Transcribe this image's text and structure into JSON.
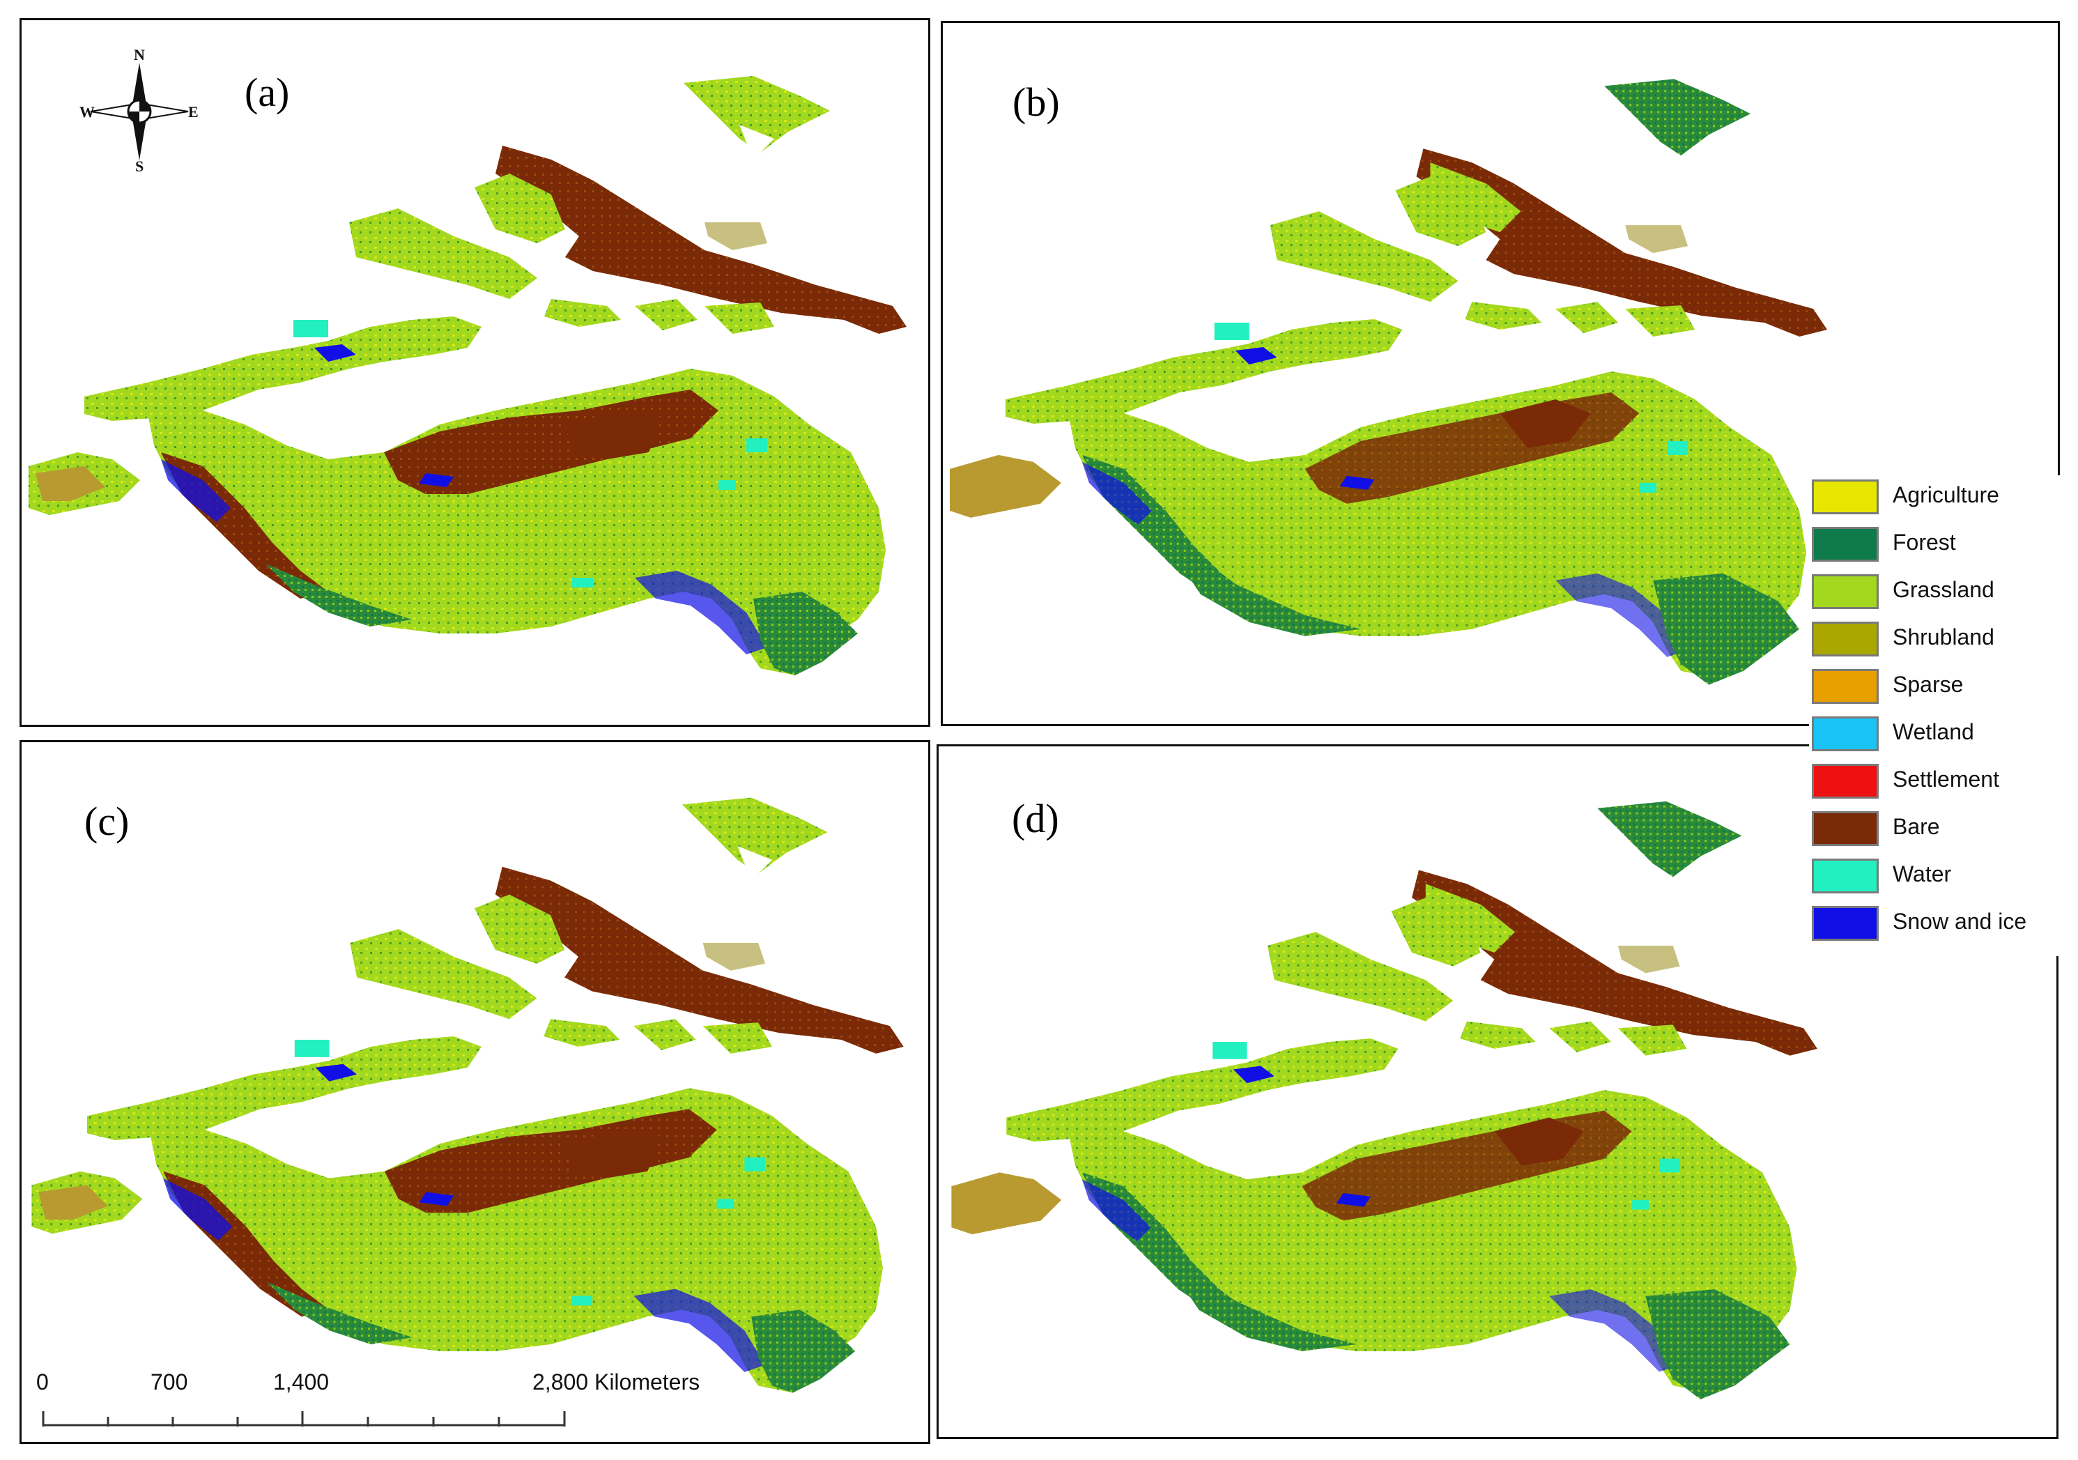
{
  "panels": [
    {
      "id": "a",
      "label": "(a)"
    },
    {
      "id": "b",
      "label": "(b)"
    },
    {
      "id": "c",
      "label": "(c)"
    },
    {
      "id": "d",
      "label": "(d)"
    }
  ],
  "legend": {
    "items": [
      {
        "label": "Agriculture",
        "color": "#e6e600"
      },
      {
        "label": "Forest",
        "color": "#0f7a4a"
      },
      {
        "label": "Grassland",
        "color": "#a2d81e"
      },
      {
        "label": "Shrubland",
        "color": "#aaa800"
      },
      {
        "label": "Sparse",
        "color": "#e8a000"
      },
      {
        "label": "Wetland",
        "color": "#19c3f5"
      },
      {
        "label": "Settlement",
        "color": "#ee1111"
      },
      {
        "label": "Bare",
        "color": "#7a2a06"
      },
      {
        "label": "Water",
        "color": "#22f0c0"
      },
      {
        "label": "Snow and ice",
        "color": "#1010e6"
      }
    ]
  },
  "compass": {
    "n": "N",
    "s": "S",
    "e": "E",
    "w": "W"
  },
  "scalebar": {
    "ticks": [
      "0",
      "700",
      "1,400",
      "2,800 Kilometers"
    ]
  }
}
